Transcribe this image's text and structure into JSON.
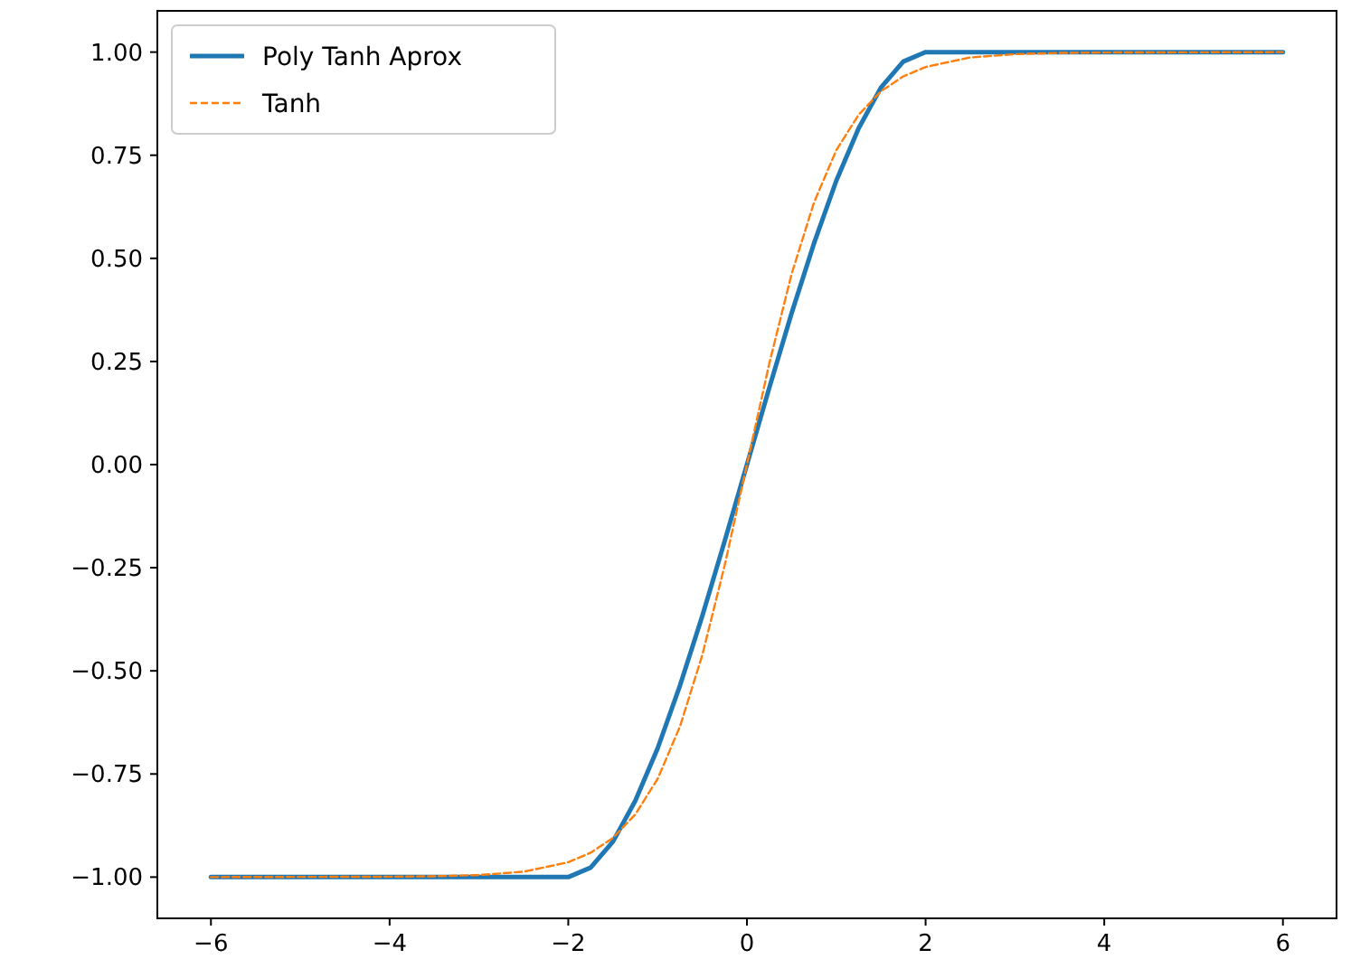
{
  "chart_data": {
    "type": "line",
    "xlim": [
      -6.6,
      6.6
    ],
    "ylim": [
      -1.1,
      1.1
    ],
    "xticks": [
      {
        "value": -6,
        "label": "−6"
      },
      {
        "value": -4,
        "label": "−4"
      },
      {
        "value": -2,
        "label": "−2"
      },
      0,
      2,
      4,
      6
    ],
    "yticks": [
      {
        "value": -1,
        "label": "−1.00"
      },
      {
        "value": -0.75,
        "label": "−0.75"
      },
      {
        "value": -0.5,
        "label": "−0.50"
      },
      {
        "value": -0.25,
        "label": "−0.25"
      },
      {
        "value": 0,
        "label": "0.00"
      },
      {
        "value": 0.25,
        "label": "0.25"
      },
      {
        "value": 0.5,
        "label": "0.50"
      },
      {
        "value": 0.75,
        "label": "0.75"
      },
      {
        "value": 1,
        "label": "1.00"
      }
    ],
    "grid": false,
    "legend": "top left",
    "marker": "none",
    "series": [
      {
        "name": "Poly Tanh Aprox",
        "color": "#1f77b4",
        "line_style": "solid",
        "x": [
          -6,
          -2,
          -1.75,
          -1.5,
          -1.25,
          -1,
          -0.75,
          -0.5,
          -0.25,
          0,
          0.25,
          0.5,
          0.75,
          1,
          1.25,
          1.5,
          1.75,
          2,
          6
        ],
        "values": [
          -1,
          -1,
          -0.977,
          -0.914,
          -0.815,
          -0.688,
          -0.536,
          -0.367,
          -0.186,
          0,
          0.186,
          0.367,
          0.536,
          0.688,
          0.815,
          0.914,
          0.977,
          1,
          1
        ]
      },
      {
        "name": "Tanh",
        "color": "#ff7f0e",
        "line_style": "dashed",
        "x": [
          -6,
          -4,
          -3.5,
          -3,
          -2.5,
          -2,
          -1.75,
          -1.5,
          -1.25,
          -1,
          -0.75,
          -0.5,
          -0.25,
          0,
          0.25,
          0.5,
          0.75,
          1,
          1.25,
          1.5,
          1.75,
          2,
          2.5,
          3,
          3.5,
          4,
          6
        ],
        "values": [
          -1,
          -0.999,
          -0.998,
          -0.995,
          -0.987,
          -0.964,
          -0.941,
          -0.905,
          -0.848,
          -0.762,
          -0.635,
          -0.462,
          -0.245,
          0,
          0.245,
          0.462,
          0.635,
          0.762,
          0.848,
          0.905,
          0.941,
          0.964,
          0.987,
          0.995,
          0.998,
          0.999,
          1
        ]
      }
    ]
  }
}
